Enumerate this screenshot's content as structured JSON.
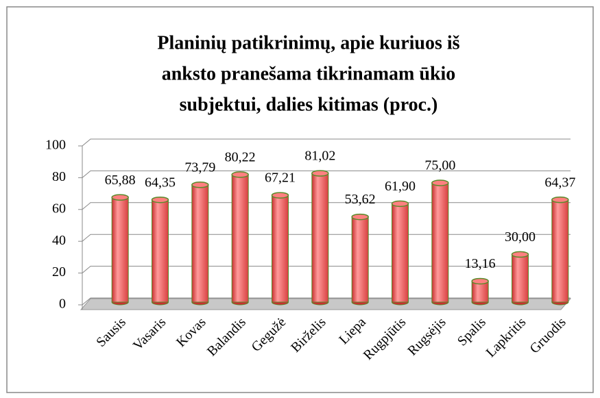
{
  "chart_data": {
    "type": "bar",
    "title": [
      "Planinių patikrinimų, apie kuriuos iš",
      "anksto pranešama tikrinamam ūkio",
      "subjektui, dalies kitimas (proc.)"
    ],
    "categories": [
      "Sausis",
      "Vasaris",
      "Kovas",
      "Balandis",
      "Gegužė",
      "Birželis",
      "Liepa",
      "Rugpjūtis",
      "Rugsėjis",
      "Spalis",
      "Lapkritis",
      "Gruodis"
    ],
    "values": [
      65.88,
      64.35,
      73.79,
      80.22,
      67.21,
      81.02,
      53.62,
      61.9,
      75.0,
      13.16,
      30.0,
      64.37
    ],
    "value_labels": [
      "65,88",
      "64,35",
      "73,79",
      "80,22",
      "67,21",
      "81,02",
      "53,62",
      "61,90",
      "75,00",
      "13,16",
      "30,00",
      "64,37"
    ],
    "color": "#f25c5c",
    "ylim": [
      0,
      100
    ],
    "yticks": [
      0,
      20,
      40,
      60,
      80,
      100
    ],
    "grid": true
  }
}
